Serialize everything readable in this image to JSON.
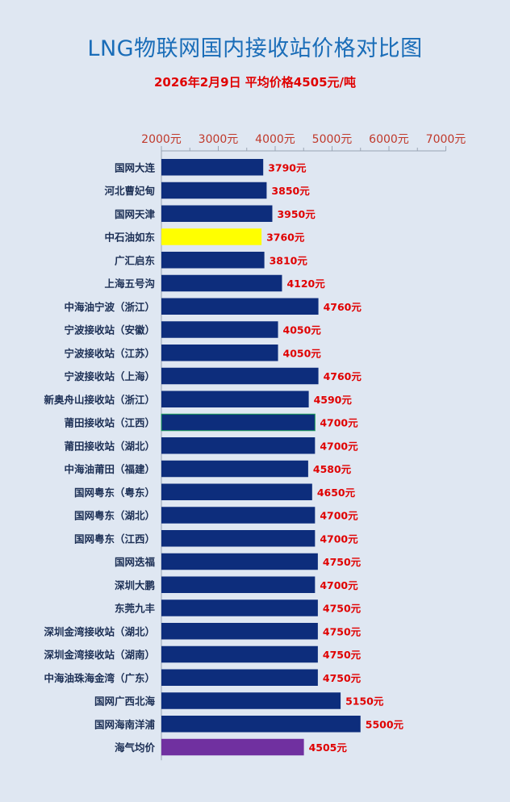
{
  "chart_data": {
    "type": "bar",
    "orientation": "horizontal",
    "title": "LNG物联网国内接收站价格对比图",
    "subtitle": "2026年2月9日 平均价格4505元/吨",
    "x_ticks": [
      "2000元",
      "3000元",
      "4000元",
      "5000元",
      "6000元",
      "7000元"
    ],
    "x_range": [
      2000,
      7000
    ],
    "categories": [
      "国网大连",
      "河北曹妃甸",
      "国网天津",
      "中石油如东",
      "广汇启东",
      "上海五号沟",
      "中海油宁波（浙江）",
      "宁波接收站（安徽）",
      "宁波接收站（江苏）",
      "宁波接收站（上海）",
      "新奥舟山接收站（浙江）",
      "莆田接收站（江西）",
      "莆田接收站（湖北）",
      "中海油莆田（福建）",
      "国网粤东（粤东）",
      "国网粤东（湖北）",
      "国网粤东（江西）",
      "国网迭福",
      "深圳大鹏",
      "东莞九丰",
      "深圳金湾接收站（湖北）",
      "深圳金湾接收站（湖南）",
      "中海油珠海金湾（广东）",
      "国网广西北海",
      "国网海南洋浦",
      "海气均价"
    ],
    "values": [
      3790,
      3850,
      3950,
      3760,
      3810,
      4120,
      4760,
      4050,
      4050,
      4760,
      4590,
      4700,
      4700,
      4580,
      4650,
      4700,
      4700,
      4750,
      4700,
      4750,
      4750,
      4750,
      4750,
      5150,
      5500,
      4505
    ],
    "value_labels": [
      "3790元",
      "3850元",
      "3950元",
      "3760元",
      "3810元",
      "4120元",
      "4760元",
      "4050元",
      "4050元",
      "4760元",
      "4590元",
      "4700元",
      "4700元",
      "4580元",
      "4650元",
      "4700元",
      "4700元",
      "4750元",
      "4700元",
      "4750元",
      "4750元",
      "4750元",
      "4750元",
      "5150元",
      "5500元",
      "4505元"
    ],
    "colors": {
      "bar": "#0d2d7c",
      "highlight": "#ffff00",
      "average": "#7030a0",
      "value_label": "#e00000",
      "tick_label": "#c0392b",
      "category_label": "#1c2f55",
      "title": "#1a6db8",
      "axis": "#9aa5b4"
    },
    "highlight_index": 3,
    "outlined_index": 11,
    "average_index": 25
  }
}
